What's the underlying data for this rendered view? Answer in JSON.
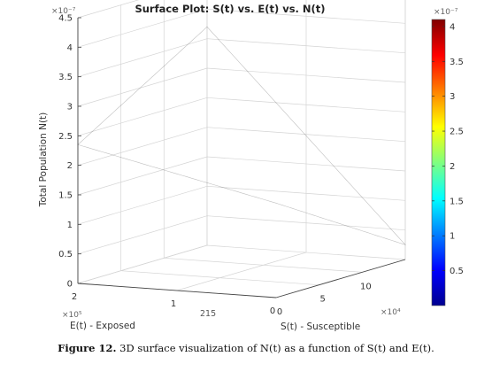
{
  "chart_data": {
    "type": "surface",
    "title": "Surface Plot: S(t) vs. E(t) vs. N(t)",
    "zlabel": "Total Population N(t)",
    "xlabel": "S(t) - Susceptible",
    "ylabel": "E(t) - Exposed",
    "z_exponent": "×10⁻⁷",
    "x_exponent": "×10⁴",
    "y_exponent": "×10⁵",
    "z_ticks": [
      "0",
      "0.5",
      "1",
      "1.5",
      "2",
      "2.5",
      "3",
      "3.5",
      "4",
      "4.5"
    ],
    "zlim": [
      0,
      4.5
    ],
    "x_ticks": [
      "0",
      "5",
      "10"
    ],
    "y_ticks": [
      "2",
      "1",
      "0"
    ],
    "xlim": [
      0,
      15
    ],
    "ylim": [
      0,
      2
    ],
    "surface_corners": [
      {
        "S": 0,
        "E": 2,
        "N": 2.35
      },
      {
        "S": 15,
        "E": 2,
        "N": 3.7
      },
      {
        "S": 15,
        "E": 0,
        "N": 0.25
      },
      {
        "S": 0,
        "E": 0,
        "N": 1.6
      }
    ],
    "colorbar": {
      "colormap": "jet",
      "range": [
        0,
        4.1
      ],
      "exponent": "×10⁻⁷",
      "ticks": [
        "0.5",
        "1",
        "1.5",
        "2",
        "2.5",
        "3",
        "3.5",
        "4"
      ]
    }
  },
  "caption": {
    "label": "Figure 12.",
    "text": "3D surface visualization of N(t) as a function of S(t) and E(t)."
  }
}
